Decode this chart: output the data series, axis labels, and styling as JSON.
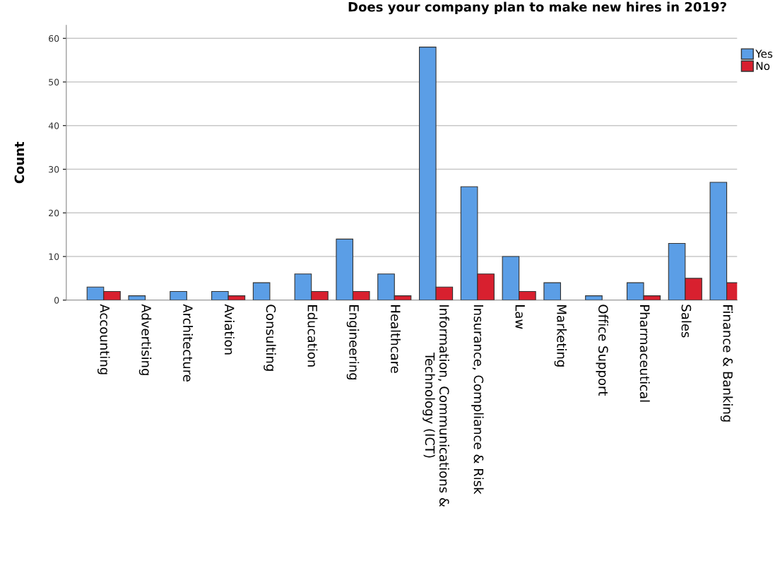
{
  "chart_data": {
    "type": "bar",
    "title": "Does your company plan to make new hires in 2019?",
    "ylabel": "Count",
    "categories": [
      "Accounting",
      "Advertising",
      "Architecture",
      "Aviation",
      "Consulting",
      "Education",
      "Engineering",
      "Healthcare",
      "Information, Communications &\nTechnology (ICT)",
      "Insurance, Compliance & Risk",
      "Law",
      "Marketing",
      "Office Support",
      "Pharmaceutical",
      "Sales",
      "Finance & Banking"
    ],
    "series": [
      {
        "name": "Yes",
        "color": "#5b9ee6",
        "values": [
          3,
          1,
          2,
          2,
          4,
          6,
          14,
          6,
          58,
          26,
          10,
          4,
          1,
          4,
          13,
          27
        ]
      },
      {
        "name": "No",
        "color": "#d8202f",
        "values": [
          2,
          null,
          null,
          1,
          null,
          2,
          2,
          1,
          3,
          6,
          2,
          null,
          null,
          1,
          5,
          4
        ]
      }
    ],
    "ylim": [
      0,
      63
    ],
    "yticks": [
      0,
      10,
      20,
      30,
      40,
      50,
      60
    ],
    "grid": "y",
    "legend": "top right"
  }
}
